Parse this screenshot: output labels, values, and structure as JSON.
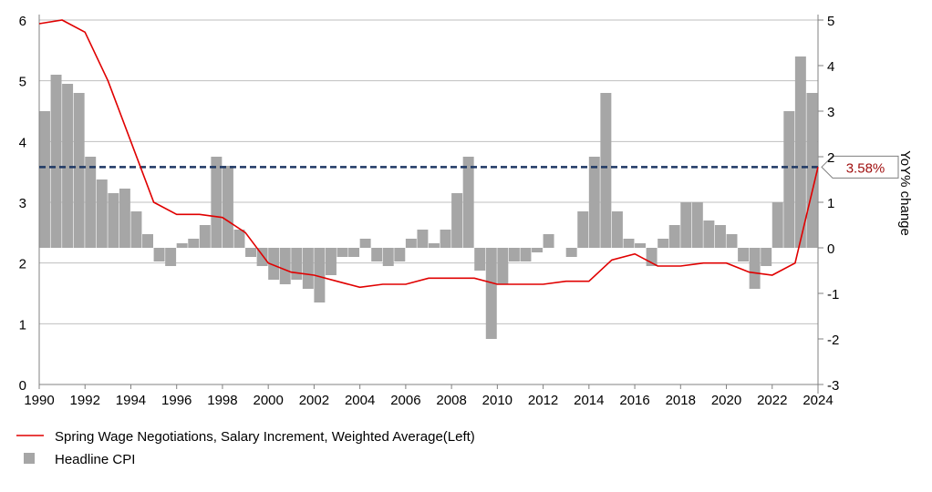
{
  "chart_data": {
    "type": "bar+line",
    "title": "",
    "left_axis": {
      "label": "",
      "ylim": [
        0,
        6
      ],
      "ticks": [
        "0",
        "1",
        "2",
        "3",
        "4",
        "5",
        "6"
      ]
    },
    "right_axis": {
      "label": "YoY% change",
      "ylim": [
        -3,
        5
      ],
      "ticks": [
        "-3",
        "-2",
        "-1",
        "0",
        "1",
        "2",
        "3",
        "4",
        "5"
      ]
    },
    "x_axis": {
      "xlim": [
        1990,
        2024
      ],
      "ticks": [
        "1990",
        "1992",
        "1994",
        "1996",
        "1998",
        "2000",
        "2002",
        "2004",
        "2006",
        "2008",
        "2010",
        "2012",
        "2014",
        "2016",
        "2018",
        "2020",
        "2022",
        "2024"
      ]
    },
    "legend": {
      "placement": "bottom-left"
    },
    "reference_line": {
      "value": 3.58,
      "label": "3.58%",
      "axis": "left",
      "color": "#1f3864",
      "style": "dashed"
    },
    "series": [
      {
        "name": "Spring Wage Negotiations, Salary Increment, Weighted Average(Left)",
        "type": "line",
        "axis": "left",
        "color": "#e00000",
        "x": [
          1990,
          1991,
          1992,
          1993,
          1994,
          1995,
          1996,
          1997,
          1998,
          1999,
          2000,
          2001,
          2002,
          2003,
          2004,
          2005,
          2006,
          2007,
          2008,
          2009,
          2010,
          2011,
          2012,
          2013,
          2014,
          2015,
          2016,
          2017,
          2018,
          2019,
          2020,
          2021,
          2022,
          2023,
          2024
        ],
        "y": [
          5.94,
          6.0,
          5.8,
          5.0,
          4.0,
          3.0,
          2.8,
          2.8,
          2.75,
          2.5,
          2.0,
          1.85,
          1.8,
          1.7,
          1.6,
          1.65,
          1.65,
          1.75,
          1.75,
          1.75,
          1.65,
          1.65,
          1.65,
          1.7,
          1.7,
          2.05,
          2.15,
          1.95,
          1.95,
          2.0,
          2.0,
          1.85,
          1.8,
          2.0,
          3.58
        ]
      },
      {
        "name": "Headline CPI",
        "type": "bar",
        "axis": "right",
        "color": "#a6a6a6",
        "x": [
          1990.0,
          1990.5,
          1991.0,
          1991.5,
          1992.0,
          1992.5,
          1993.0,
          1993.5,
          1994.0,
          1994.5,
          1995.0,
          1995.5,
          1996.0,
          1996.5,
          1997.0,
          1997.5,
          1998.0,
          1998.5,
          1999.0,
          1999.5,
          2000.0,
          2000.5,
          2001.0,
          2001.5,
          2002.0,
          2002.5,
          2003.0,
          2003.5,
          2004.0,
          2004.5,
          2005.0,
          2005.5,
          2006.0,
          2006.5,
          2007.0,
          2007.5,
          2008.0,
          2008.5,
          2009.0,
          2009.5,
          2010.0,
          2010.5,
          2011.0,
          2011.5,
          2012.0,
          2012.5,
          2013.0,
          2013.5,
          2014.0,
          2014.5,
          2015.0,
          2015.5,
          2016.0,
          2016.5,
          2017.0,
          2017.5,
          2018.0,
          2018.5,
          2019.0,
          2019.5,
          2020.0,
          2020.5,
          2021.0,
          2021.5,
          2022.0,
          2022.5,
          2023.0,
          2023.5
        ],
        "y": [
          3.0,
          3.8,
          3.6,
          3.4,
          2.0,
          1.5,
          1.2,
          1.3,
          0.8,
          0.3,
          -0.3,
          -0.4,
          0.1,
          0.2,
          0.5,
          2.0,
          1.8,
          0.4,
          -0.2,
          -0.4,
          -0.7,
          -0.8,
          -0.7,
          -0.9,
          -1.2,
          -0.6,
          -0.2,
          -0.2,
          0.2,
          -0.3,
          -0.4,
          -0.3,
          0.2,
          0.4,
          0.1,
          0.4,
          1.2,
          2.0,
          -0.5,
          -2.0,
          -0.8,
          -0.3,
          -0.3,
          -0.1,
          0.3,
          0.0,
          -0.2,
          0.8,
          2.0,
          3.4,
          0.8,
          0.2,
          0.1,
          -0.4,
          0.2,
          0.5,
          1.0,
          1.0,
          0.6,
          0.5,
          0.3,
          -0.3,
          -0.9,
          -0.4,
          1.0,
          3.0,
          4.2,
          3.4
        ]
      }
    ]
  }
}
